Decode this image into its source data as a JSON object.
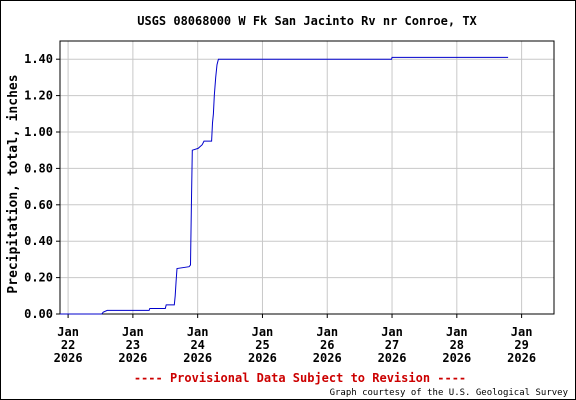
{
  "chart_data": {
    "type": "line",
    "title": "USGS 08068000 W Fk San Jacinto Rv nr Conroe, TX",
    "ylabel": "Precipitation, total, inches",
    "xlabel": "",
    "ylim": [
      0,
      1.5
    ],
    "y_ticks": [
      "0.00",
      "0.20",
      "0.40",
      "0.60",
      "0.80",
      "1.00",
      "1.20",
      "1.40"
    ],
    "x_ticks": [
      {
        "month": "Jan",
        "day": "22",
        "year": "2026"
      },
      {
        "month": "Jan",
        "day": "23",
        "year": "2026"
      },
      {
        "month": "Jan",
        "day": "24",
        "year": "2026"
      },
      {
        "month": "Jan",
        "day": "25",
        "year": "2026"
      },
      {
        "month": "Jan",
        "day": "26",
        "year": "2026"
      },
      {
        "month": "Jan",
        "day": "27",
        "year": "2026"
      },
      {
        "month": "Jan",
        "day": "28",
        "year": "2026"
      },
      {
        "month": "Jan",
        "day": "29",
        "year": "2026"
      }
    ],
    "grid": true,
    "series": [
      {
        "color": "#0000cc",
        "points": [
          [
            "2026-01-21 21:00",
            0.0
          ],
          [
            "2026-01-22 12:30",
            0.0
          ],
          [
            "2026-01-22 13:00",
            0.01
          ],
          [
            "2026-01-22 14:30",
            0.02
          ],
          [
            "2026-01-23 06:00",
            0.02
          ],
          [
            "2026-01-23 06:15",
            0.03
          ],
          [
            "2026-01-23 12:00",
            0.03
          ],
          [
            "2026-01-23 12:20",
            0.05
          ],
          [
            "2026-01-23 15:20",
            0.05
          ],
          [
            "2026-01-23 15:40",
            0.1
          ],
          [
            "2026-01-23 16:00",
            0.18
          ],
          [
            "2026-01-23 16:20",
            0.25
          ],
          [
            "2026-01-23 20:50",
            0.26
          ],
          [
            "2026-01-23 21:20",
            0.27
          ],
          [
            "2026-01-23 21:40",
            0.6
          ],
          [
            "2026-01-23 22:00",
            0.9
          ],
          [
            "2026-01-24 00:10",
            0.91
          ],
          [
            "2026-01-24 01:40",
            0.93
          ],
          [
            "2026-01-24 02:20",
            0.95
          ],
          [
            "2026-01-24 05:10",
            0.95
          ],
          [
            "2026-01-24 05:30",
            1.05
          ],
          [
            "2026-01-24 05:50",
            1.1
          ],
          [
            "2026-01-24 06:10",
            1.2
          ],
          [
            "2026-01-24 06:40",
            1.3
          ],
          [
            "2026-01-24 07:10",
            1.37
          ],
          [
            "2026-01-24 07:40",
            1.4
          ],
          [
            "2026-01-26 23:50",
            1.4
          ],
          [
            "2026-01-27 00:00",
            1.41
          ],
          [
            "2026-01-28 19:00",
            1.41
          ]
        ]
      }
    ]
  },
  "footer": {
    "note": "---- Provisional Data Subject to Revision ----",
    "note_color": "#cc0000",
    "credit": "Graph courtesy of the U.S. Geological Survey"
  }
}
